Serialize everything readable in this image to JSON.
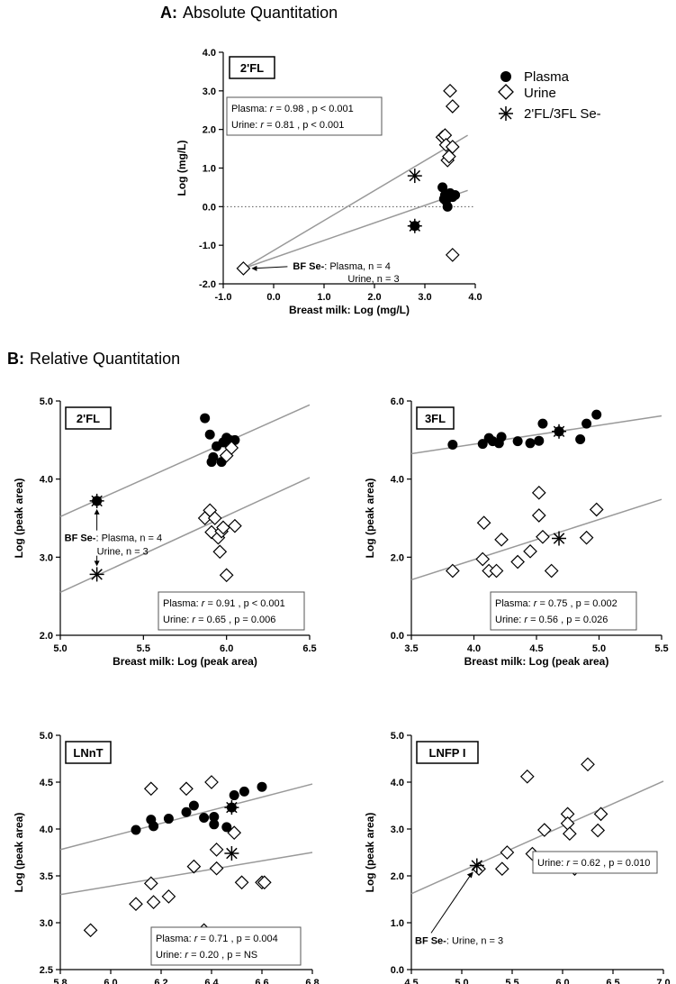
{
  "section_a": {
    "letter": "A:",
    "title": "Absolute Quantitation"
  },
  "section_b": {
    "letter": "B:",
    "title": "Relative Quantitation"
  },
  "legend": [
    {
      "label": "Plasma",
      "marker": "filled-circle"
    },
    {
      "label": "Urine",
      "marker": "open-diamond"
    },
    {
      "label": "2'FL/3FL Se-",
      "marker": "asterisk"
    }
  ],
  "chart_data": [
    {
      "id": "a",
      "type": "scatter",
      "panel_label": "2'FL",
      "xlabel": "Breast milk: Log (mg/L)",
      "ylabel": "Log (mg/L)",
      "xlim": [
        -1.0,
        4.0
      ],
      "ylim": [
        -2.0,
        4.0
      ],
      "xticks": [
        -1.0,
        0.0,
        1.0,
        2.0,
        3.0,
        4.0
      ],
      "yticks": [
        -2.0,
        -1.0,
        0.0,
        1.0,
        2.0,
        3.0,
        4.0
      ],
      "tick_format": "one_decimal",
      "zero_line": true,
      "stats": [
        {
          "group": "Plasma:",
          "r": "0.98",
          "p": "p  < 0.001"
        },
        {
          "group": "Urine:",
          "r": "0.81",
          "p": "p < 0.001"
        }
      ],
      "annotation": {
        "bold": "BF Se-",
        "line1": ": Plasma, n = 4",
        "line2": "Urine, n = 3",
        "at": [
          -0.6,
          -1.6
        ]
      },
      "series": [
        {
          "name": "Plasma",
          "marker": "circle",
          "points": [
            [
              -0.6,
              -1.6
            ],
            [
              3.35,
              0.5
            ],
            [
              3.4,
              0.3
            ],
            [
              3.42,
              0.15
            ],
            [
              3.45,
              0.0
            ],
            [
              3.5,
              0.35
            ],
            [
              3.55,
              0.25
            ],
            [
              3.6,
              0.3
            ],
            [
              3.38,
              0.2
            ]
          ]
        },
        {
          "name": "Urine",
          "marker": "diamond",
          "points": [
            [
              -0.6,
              -1.6
            ],
            [
              3.35,
              1.8
            ],
            [
              3.4,
              1.85
            ],
            [
              3.42,
              1.6
            ],
            [
              3.45,
              1.2
            ],
            [
              3.48,
              1.3
            ],
            [
              3.5,
              3.0
            ],
            [
              3.55,
              2.6
            ],
            [
              3.55,
              1.55
            ],
            [
              3.55,
              -1.25
            ]
          ]
        },
        {
          "name": "Se- Plasma",
          "marker": "circle-asterisk",
          "points": [
            [
              2.8,
              -0.5
            ]
          ]
        },
        {
          "name": "Se- Urine",
          "marker": "asterisk",
          "points": [
            [
              2.8,
              0.8
            ]
          ]
        }
      ],
      "lines": [
        {
          "from": [
            -0.6,
            -1.6
          ],
          "to": [
            3.85,
            1.85
          ]
        },
        {
          "from": [
            -0.6,
            -1.6
          ],
          "to": [
            3.85,
            0.42
          ]
        }
      ]
    },
    {
      "id": "b1",
      "type": "scatter",
      "panel_label": "2'FL",
      "xlabel": "Breast milk: Log (peak area)",
      "ylabel": "Log (peak area)",
      "xlim": [
        5.0,
        6.5
      ],
      "ylim": [
        2.0,
        5.0
      ],
      "xticks": [
        5.0,
        5.5,
        6.0,
        6.5
      ],
      "yticks": [
        2.0,
        3.0,
        4.0,
        5.0
      ],
      "tick_format": "one_decimal",
      "stats": [
        {
          "group": "Plasma:",
          "r": "0.91",
          "p": "p < 0.001"
        },
        {
          "group": "Urine:",
          "r": "0.65",
          "p": "p = 0.006"
        }
      ],
      "annotation": {
        "bold": "BF Se-",
        "line1": ": Plasma, n = 4",
        "line2": "Urine, n = 3",
        "at": [
          5.22,
          3.25
        ]
      },
      "series": [
        {
          "name": "Plasma",
          "marker": "circle",
          "points": [
            [
              5.87,
              4.78
            ],
            [
              5.9,
              4.57
            ],
            [
              5.91,
              4.22
            ],
            [
              5.92,
              4.28
            ],
            [
              5.94,
              4.42
            ],
            [
              5.97,
              4.22
            ],
            [
              5.98,
              4.47
            ],
            [
              6.0,
              4.53
            ],
            [
              6.02,
              4.5
            ],
            [
              6.05,
              4.5
            ]
          ]
        },
        {
          "name": "Urine",
          "marker": "diamond",
          "points": [
            [
              5.87,
              3.5
            ],
            [
              5.9,
              3.6
            ],
            [
              5.91,
              3.32
            ],
            [
              5.93,
              3.5
            ],
            [
              5.95,
              3.25
            ],
            [
              5.96,
              3.07
            ],
            [
              5.97,
              3.33
            ],
            [
              5.98,
              3.38
            ],
            [
              6.0,
              2.77
            ],
            [
              6.05,
              3.4
            ],
            [
              6.0,
              4.3
            ],
            [
              6.03,
              4.4
            ]
          ]
        },
        {
          "name": "Se- Plasma",
          "marker": "circle-asterisk",
          "points": [
            [
              5.22,
              3.72
            ]
          ]
        },
        {
          "name": "Se- Urine",
          "marker": "asterisk",
          "points": [
            [
              5.22,
              2.78
            ]
          ]
        }
      ],
      "lines": [
        {
          "from": [
            5.0,
            3.52
          ],
          "to": [
            6.5,
            4.95
          ]
        },
        {
          "from": [
            5.0,
            2.55
          ],
          "to": [
            6.5,
            4.02
          ]
        }
      ]
    },
    {
      "id": "b2",
      "type": "scatter",
      "panel_label": "3FL",
      "xlabel": "Breast milk: Log (peak area)",
      "ylabel": "Log (peak area)",
      "xlim": [
        3.5,
        5.5
      ],
      "ylim": [
        0.0,
        6.0
      ],
      "xticks": [
        3.5,
        4.0,
        4.5,
        5.0,
        5.5
      ],
      "yticks": [
        0.0,
        2.0,
        4.0,
        6.0
      ],
      "tick_format": "one_decimal",
      "stats": [
        {
          "group": "Plasma:",
          "r": "0.75",
          "p": "p = 0.002"
        },
        {
          "group": "Urine:",
          "r": "0.56",
          "p": "p = 0.026"
        }
      ],
      "series": [
        {
          "name": "Plasma",
          "marker": "circle",
          "points": [
            [
              3.83,
              4.88
            ],
            [
              4.07,
              4.9
            ],
            [
              4.12,
              5.05
            ],
            [
              4.15,
              4.97
            ],
            [
              4.2,
              4.92
            ],
            [
              4.22,
              5.08
            ],
            [
              4.35,
              4.97
            ],
            [
              4.45,
              4.92
            ],
            [
              4.52,
              4.98
            ],
            [
              4.55,
              5.42
            ],
            [
              4.85,
              5.02
            ],
            [
              4.9,
              5.42
            ],
            [
              4.98,
              5.65
            ]
          ]
        },
        {
          "name": "Urine",
          "marker": "diamond",
          "points": [
            [
              3.83,
              1.65
            ],
            [
              4.07,
              1.95
            ],
            [
              4.08,
              2.88
            ],
            [
              4.12,
              1.65
            ],
            [
              4.18,
              1.65
            ],
            [
              4.22,
              2.45
            ],
            [
              4.35,
              1.88
            ],
            [
              4.45,
              2.15
            ],
            [
              4.52,
              3.65
            ],
            [
              4.52,
              3.07
            ],
            [
              4.55,
              2.52
            ],
            [
              4.62,
              1.65
            ],
            [
              4.9,
              2.5
            ],
            [
              4.98,
              3.22
            ]
          ]
        },
        {
          "name": "Se- Plasma",
          "marker": "circle-asterisk",
          "points": [
            [
              4.68,
              5.22
            ]
          ]
        },
        {
          "name": "Se- Urine",
          "marker": "asterisk",
          "points": [
            [
              4.68,
              2.48
            ]
          ]
        }
      ],
      "lines": [
        {
          "from": [
            3.5,
            4.65
          ],
          "to": [
            5.5,
            5.62
          ]
        },
        {
          "from": [
            3.5,
            1.42
          ],
          "to": [
            5.5,
            3.48
          ]
        }
      ]
    },
    {
      "id": "b3",
      "type": "scatter",
      "panel_label": "LNnT",
      "xlabel": "Breast milk: Log (peak area)",
      "ylabel": "Log (peak area)",
      "xlim": [
        5.8,
        6.8
      ],
      "ylim": [
        2.5,
        5.0
      ],
      "xticks": [
        5.8,
        6.0,
        6.2,
        6.4,
        6.6,
        6.8
      ],
      "yticks": [
        2.5,
        3.0,
        3.5,
        4.0,
        4.5,
        5.0
      ],
      "tick_format": "one_decimal",
      "stats": [
        {
          "group": "Plasma:",
          "r": "0.71",
          "p": "p = 0.004"
        },
        {
          "group": "Urine:",
          "r": "0.20",
          "p": "p =  NS"
        }
      ],
      "series": [
        {
          "name": "Plasma",
          "marker": "circle",
          "points": [
            [
              6.1,
              3.99
            ],
            [
              6.16,
              4.1
            ],
            [
              6.17,
              4.03
            ],
            [
              6.23,
              4.11
            ],
            [
              6.3,
              4.18
            ],
            [
              6.33,
              4.25
            ],
            [
              6.37,
              4.12
            ],
            [
              6.41,
              4.13
            ],
            [
              6.41,
              4.05
            ],
            [
              6.46,
              4.02
            ],
            [
              6.49,
              4.36
            ],
            [
              6.53,
              4.4
            ],
            [
              6.6,
              4.45
            ]
          ]
        },
        {
          "name": "Urine",
          "marker": "diamond",
          "points": [
            [
              5.92,
              2.92
            ],
            [
              6.1,
              3.2
            ],
            [
              6.16,
              3.42
            ],
            [
              6.17,
              3.22
            ],
            [
              6.23,
              3.28
            ],
            [
              6.16,
              4.43
            ],
            [
              6.3,
              4.43
            ],
            [
              6.33,
              3.6
            ],
            [
              6.37,
              2.92
            ],
            [
              6.42,
              3.78
            ],
            [
              6.42,
              3.58
            ],
            [
              6.49,
              3.96
            ],
            [
              6.52,
              3.43
            ],
            [
              6.6,
              3.43
            ],
            [
              6.61,
              3.43
            ],
            [
              6.4,
              4.5
            ]
          ]
        },
        {
          "name": "Se- Plasma",
          "marker": "circle-asterisk",
          "points": [
            [
              6.48,
              4.23
            ]
          ]
        },
        {
          "name": "Se- Urine",
          "marker": "asterisk",
          "points": [
            [
              6.48,
              3.74
            ]
          ]
        }
      ],
      "lines": [
        {
          "from": [
            5.8,
            3.78
          ],
          "to": [
            6.8,
            4.48
          ]
        },
        {
          "from": [
            5.8,
            3.3
          ],
          "to": [
            6.8,
            3.75
          ]
        }
      ]
    },
    {
      "id": "b4",
      "type": "scatter",
      "panel_label": "LNFP I",
      "xlabel": "Breast milk: Log (peak area)",
      "ylabel": "Log (peak area)",
      "xlim": [
        4.5,
        7.0
      ],
      "ylim": [
        0.0,
        5.0
      ],
      "xticks": [
        4.5,
        5.0,
        5.5,
        6.0,
        6.5,
        7.0
      ],
      "yticks": [
        0.0,
        1.0,
        2.0,
        3.0,
        4.0,
        5.0
      ],
      "tick_format": "one_decimal",
      "stats": [
        {
          "group": "Urine:",
          "r": "0.62",
          "p": "p = 0.010"
        }
      ],
      "annotation": {
        "bold": "BF Se-",
        "line1": ": Urine, n = 3",
        "at": [
          5.15,
          2.22
        ]
      },
      "series": [
        {
          "name": "Urine",
          "marker": "diamond",
          "points": [
            [
              5.17,
              2.15
            ],
            [
              5.4,
              2.15
            ],
            [
              5.45,
              2.5
            ],
            [
              5.65,
              4.12
            ],
            [
              5.7,
              2.47
            ],
            [
              5.82,
              2.98
            ],
            [
              6.05,
              3.32
            ],
            [
              6.05,
              3.12
            ],
            [
              6.07,
              2.9
            ],
            [
              6.12,
              2.15
            ],
            [
              6.25,
              4.38
            ],
            [
              6.35,
              2.97
            ],
            [
              6.38,
              3.32
            ]
          ]
        },
        {
          "name": "Se- Urine",
          "marker": "asterisk",
          "points": [
            [
              5.15,
              2.22
            ]
          ]
        }
      ],
      "lines": [
        {
          "from": [
            4.5,
            1.62
          ],
          "to": [
            7.0,
            4.02
          ]
        }
      ]
    }
  ]
}
